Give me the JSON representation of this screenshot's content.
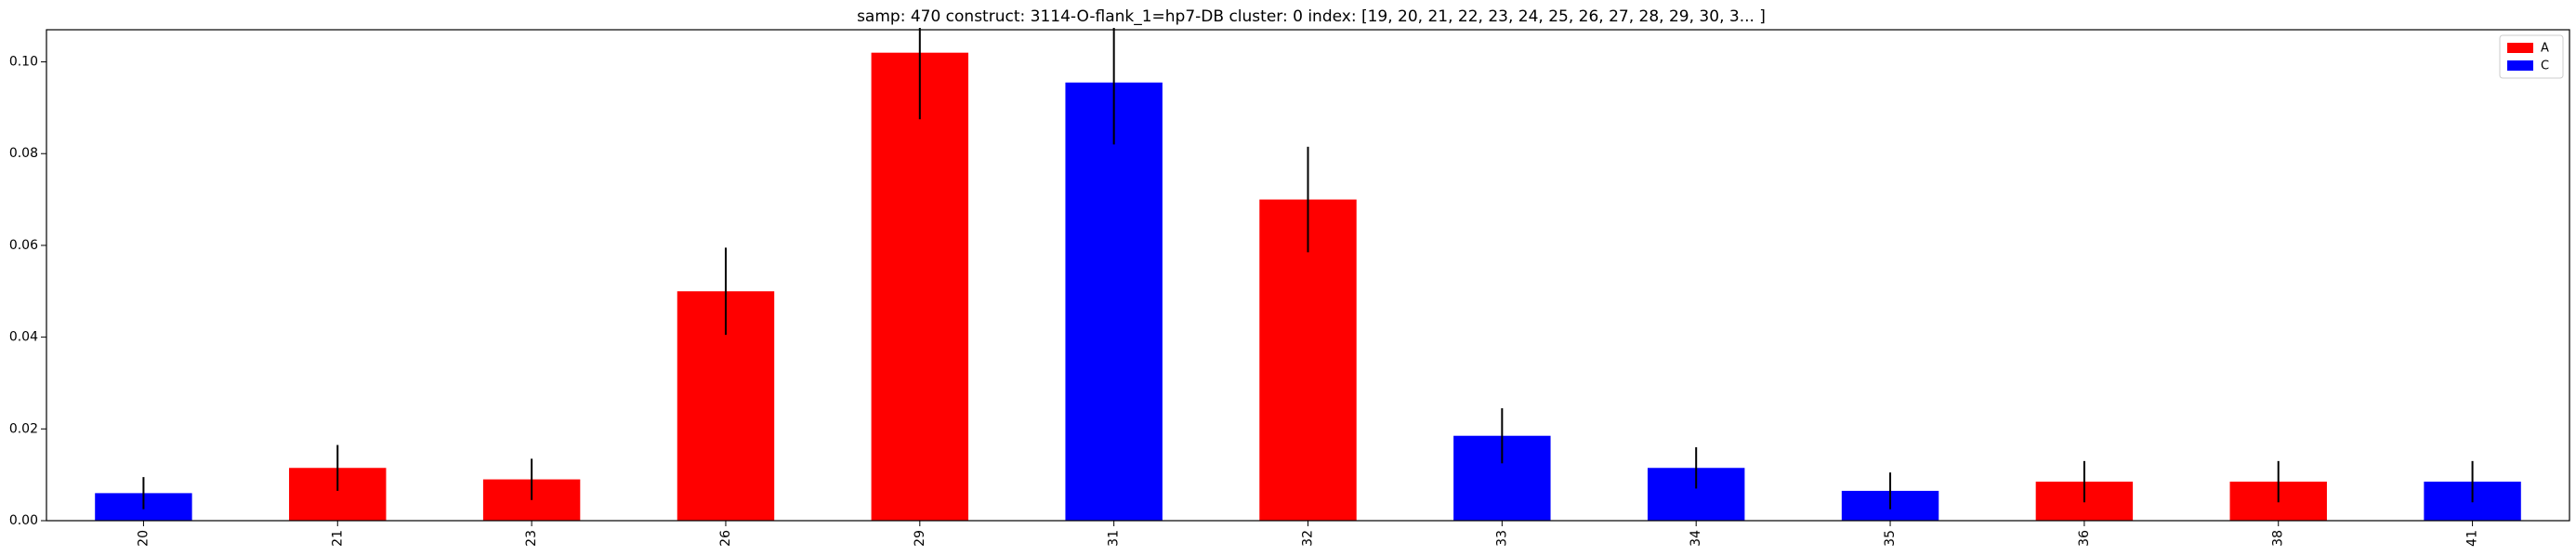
{
  "chart_data": {
    "type": "bar",
    "title": "samp: 470  construct: 3114-O-flank_1=hp7-DB  cluster: 0  index: [19, 20, 21, 22, 23, 24, 25, 26, 27, 28, 29, 30, 3... ]",
    "xlabel": "",
    "ylabel": "",
    "ylim": [
      0,
      0.107
    ],
    "yticks": [
      0.0,
      0.02,
      0.04,
      0.06,
      0.08,
      0.1
    ],
    "ytick_labels": [
      "0.00",
      "0.02",
      "0.04",
      "0.06",
      "0.08",
      "0.10"
    ],
    "grid": false,
    "legend_position": "top-right",
    "legend": [
      {
        "label": "A",
        "color": "#ff0000"
      },
      {
        "label": "C",
        "color": "#0000ff"
      }
    ],
    "categories": [
      "20",
      "21",
      "23",
      "26",
      "29",
      "31",
      "32",
      "33",
      "34",
      "35",
      "36",
      "38",
      "41"
    ],
    "values": [
      0.006,
      0.0115,
      0.009,
      0.05,
      0.102,
      0.0955,
      0.07,
      0.0185,
      0.0115,
      0.0065,
      0.0085,
      0.0085,
      0.0085
    ],
    "errors": [
      0.0035,
      0.005,
      0.0045,
      0.0095,
      0.0145,
      0.0135,
      0.0115,
      0.006,
      0.0045,
      0.004,
      0.0045,
      0.0045,
      0.0045
    ],
    "bar_bases": [
      "C",
      "A",
      "A",
      "A",
      "A",
      "C",
      "A",
      "C",
      "C",
      "C",
      "A",
      "A",
      "C"
    ],
    "colors": {
      "A": "#ff0000",
      "C": "#0000ff",
      "error": "#000000",
      "axis": "#000000"
    }
  }
}
